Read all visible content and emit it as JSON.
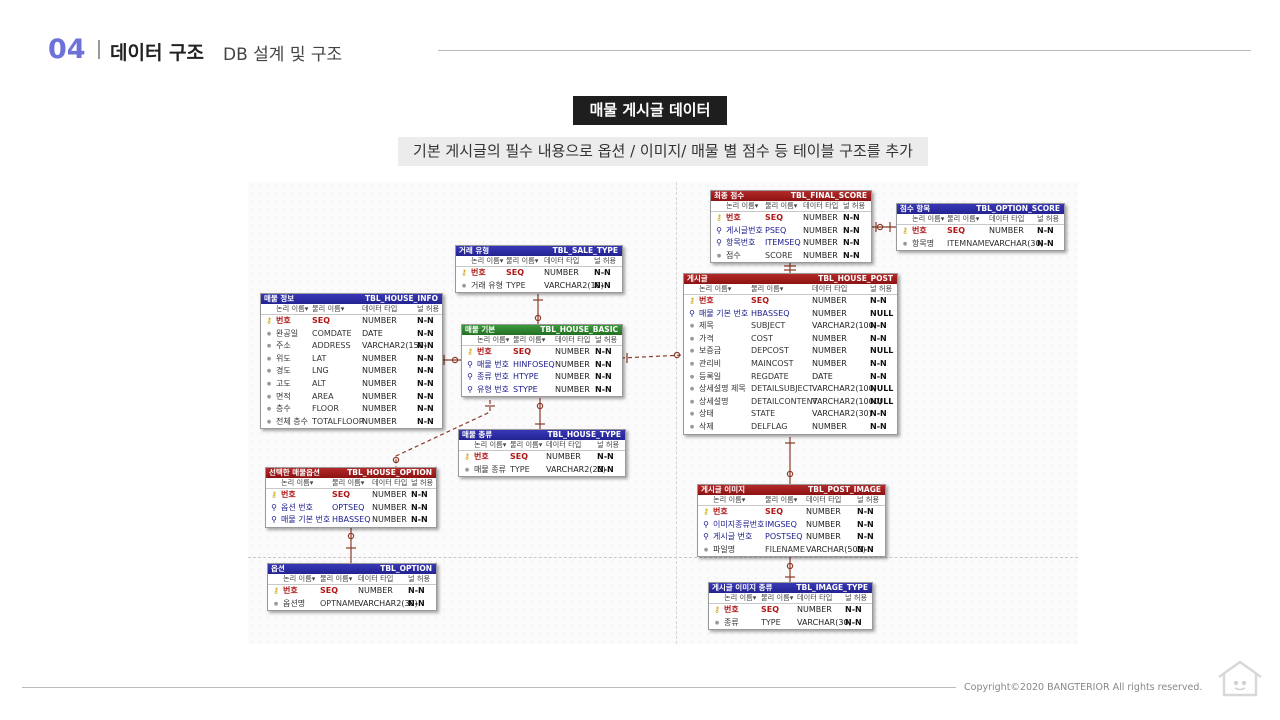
{
  "header": {
    "number": "04",
    "title": "데이터 구조",
    "subtitle": "DB 설계 및 구조"
  },
  "section": {
    "title": "매물 게시글 데이터",
    "description": "기본 게시글의 필수 내용으로 옵션 / 이미지/ 매물 별 점수 등 테이블 구조를 추가"
  },
  "footer": {
    "copyright": "Copyright©2020 BANGTERIOR All rights reserved."
  },
  "erd": {
    "column_headers": {
      "logical": "논리 이름",
      "physical": "물리 이름",
      "type": "데이터 타입",
      "nullable": "널 허용"
    },
    "tables": [
      {
        "id": "final_score",
        "color": "red",
        "logical": "최종 점수",
        "physical": "TBL_FINAL_SCORE",
        "rows": [
          {
            "kind": "pk",
            "logical": "번호",
            "physical": "SEQ",
            "type": "NUMBER",
            "nullable": "N-N"
          },
          {
            "kind": "fk",
            "logical": "게시글번호",
            "physical": "PSEQ",
            "type": "NUMBER",
            "nullable": "N-N"
          },
          {
            "kind": "fk",
            "logical": "항목번호",
            "physical": "ITEMSEQ",
            "type": "NUMBER",
            "nullable": "N-N"
          },
          {
            "kind": "attr",
            "logical": "점수",
            "physical": "SCORE",
            "type": "NUMBER",
            "nullable": "N-N"
          }
        ]
      },
      {
        "id": "option_score",
        "color": "blue",
        "logical": "점수 항목",
        "physical": "TBL_OPTION_SCORE",
        "rows": [
          {
            "kind": "pk",
            "logical": "번호",
            "physical": "SEQ",
            "type": "NUMBER",
            "nullable": "N-N"
          },
          {
            "kind": "attr",
            "logical": "항목명",
            "physical": "ITEMNAME",
            "type": "VARCHAR(30)",
            "nullable": "N-N"
          }
        ]
      },
      {
        "id": "sale_type",
        "color": "blue",
        "logical": "거래 유형",
        "physical": "TBL_SALE_TYPE",
        "rows": [
          {
            "kind": "pk",
            "logical": "번호",
            "physical": "SEQ",
            "type": "NUMBER",
            "nullable": "N-N"
          },
          {
            "kind": "attr",
            "logical": "거래 유형",
            "physical": "TYPE",
            "type": "VARCHAR2(10)",
            "nullable": "N-N"
          }
        ]
      },
      {
        "id": "house_post",
        "color": "red",
        "logical": "게시글",
        "physical": "TBL_HOUSE_POST",
        "rows": [
          {
            "kind": "pk",
            "logical": "번호",
            "physical": "SEQ",
            "type": "NUMBER",
            "nullable": "N-N"
          },
          {
            "kind": "fk",
            "logical": "매물 기본 번호",
            "physical": "HBASSEQ",
            "type": "NUMBER",
            "nullable": "NULL"
          },
          {
            "kind": "attr",
            "logical": "제목",
            "physical": "SUBJECT",
            "type": "VARCHAR2(100)",
            "nullable": "N-N"
          },
          {
            "kind": "attr",
            "logical": "가격",
            "physical": "COST",
            "type": "NUMBER",
            "nullable": "N-N"
          },
          {
            "kind": "attr",
            "logical": "보증금",
            "physical": "DEPCOST",
            "type": "NUMBER",
            "nullable": "NULL"
          },
          {
            "kind": "attr",
            "logical": "관리비",
            "physical": "MAINCOST",
            "type": "NUMBER",
            "nullable": "N-N"
          },
          {
            "kind": "attr",
            "logical": "등록일",
            "physical": "REGDATE",
            "type": "DATE",
            "nullable": "N-N"
          },
          {
            "kind": "attr",
            "logical": "상세설명 제목",
            "physical": "DETAILSUBJECT",
            "type": "VARCHAR2(100)",
            "nullable": "NULL"
          },
          {
            "kind": "attr",
            "logical": "상세설명",
            "physical": "DETAILCONTENT",
            "type": "VARCHAR2(1000)",
            "nullable": "NULL"
          },
          {
            "kind": "attr",
            "logical": "상태",
            "physical": "STATE",
            "type": "VARCHAR2(30)",
            "nullable": "N-N"
          },
          {
            "kind": "attr",
            "logical": "삭제",
            "physical": "DELFLAG",
            "type": "NUMBER",
            "nullable": "N-N"
          }
        ]
      },
      {
        "id": "house_info",
        "color": "blue",
        "logical": "매물 정보",
        "physical": "TBL_HOUSE_INFO",
        "rows": [
          {
            "kind": "pk",
            "logical": "번호",
            "physical": "SEQ",
            "type": "NUMBER",
            "nullable": "N-N"
          },
          {
            "kind": "attr",
            "logical": "완공일",
            "physical": "COMDATE",
            "type": "DATE",
            "nullable": "N-N"
          },
          {
            "kind": "attr",
            "logical": "주소",
            "physical": "ADDRESS",
            "type": "VARCHAR2(150)",
            "nullable": "N-N"
          },
          {
            "kind": "attr",
            "logical": "위도",
            "physical": "LAT",
            "type": "NUMBER",
            "nullable": "N-N"
          },
          {
            "kind": "attr",
            "logical": "경도",
            "physical": "LNG",
            "type": "NUMBER",
            "nullable": "N-N"
          },
          {
            "kind": "attr",
            "logical": "고도",
            "physical": "ALT",
            "type": "NUMBER",
            "nullable": "N-N"
          },
          {
            "kind": "attr",
            "logical": "면적",
            "physical": "AREA",
            "type": "NUMBER",
            "nullable": "N-N"
          },
          {
            "kind": "attr",
            "logical": "층수",
            "physical": "FLOOR",
            "type": "NUMBER",
            "nullable": "N-N"
          },
          {
            "kind": "attr",
            "logical": "전체 층수",
            "physical": "TOTALFLOOR",
            "type": "NUMBER",
            "nullable": "N-N"
          }
        ]
      },
      {
        "id": "house_basic",
        "color": "green",
        "logical": "매물 기본",
        "physical": "TBL_HOUSE_BASIC",
        "rows": [
          {
            "kind": "pk",
            "logical": "번호",
            "physical": "SEQ",
            "type": "NUMBER",
            "nullable": "N-N"
          },
          {
            "kind": "fk",
            "logical": "매물 번호",
            "physical": "HINFOSEQ",
            "type": "NUMBER",
            "nullable": "N-N"
          },
          {
            "kind": "fk",
            "logical": "종류 번호",
            "physical": "HTYPE",
            "type": "NUMBER",
            "nullable": "N-N"
          },
          {
            "kind": "fk",
            "logical": "유형 번호",
            "physical": "STYPE",
            "type": "NUMBER",
            "nullable": "N-N"
          }
        ]
      },
      {
        "id": "house_type",
        "color": "blue",
        "logical": "매물 종류",
        "physical": "TBL_HOUSE_TYPE",
        "rows": [
          {
            "kind": "pk",
            "logical": "번호",
            "physical": "SEQ",
            "type": "NUMBER",
            "nullable": "N-N"
          },
          {
            "kind": "attr",
            "logical": "매물 종류",
            "physical": "TYPE",
            "type": "VARCHAR2(20)",
            "nullable": "N-N"
          }
        ]
      },
      {
        "id": "house_option",
        "color": "red",
        "logical": "선택한 매물옵션",
        "physical": "TBL_HOUSE_OPTION",
        "rows": [
          {
            "kind": "pk",
            "logical": "번호",
            "physical": "SEQ",
            "type": "NUMBER",
            "nullable": "N-N"
          },
          {
            "kind": "fk",
            "logical": "옵션 번호",
            "physical": "OPTSEQ",
            "type": "NUMBER",
            "nullable": "N-N"
          },
          {
            "kind": "fk",
            "logical": "매물 기본 번호",
            "physical": "HBASSEQ",
            "type": "NUMBER",
            "nullable": "N-N"
          }
        ]
      },
      {
        "id": "post_image",
        "color": "red",
        "logical": "게시글 이미지",
        "physical": "TBL_POST_IMAGE",
        "rows": [
          {
            "kind": "pk",
            "logical": "번호",
            "physical": "SEQ",
            "type": "NUMBER",
            "nullable": "N-N"
          },
          {
            "kind": "fk",
            "logical": "이미지종류번호",
            "physical": "IMGSEQ",
            "type": "NUMBER",
            "nullable": "N-N"
          },
          {
            "kind": "fk",
            "logical": "게시글 번호",
            "physical": "POSTSEQ",
            "type": "NUMBER",
            "nullable": "N-N"
          },
          {
            "kind": "attr",
            "logical": "파일명",
            "physical": "FILENAME",
            "type": "VARCHAR(500)",
            "nullable": "N-N"
          }
        ]
      },
      {
        "id": "option",
        "color": "blue",
        "logical": "옵션",
        "physical": "TBL_OPTION",
        "rows": [
          {
            "kind": "pk",
            "logical": "번호",
            "physical": "SEQ",
            "type": "NUMBER",
            "nullable": "N-N"
          },
          {
            "kind": "attr",
            "logical": "옵션명",
            "physical": "OPTNAME",
            "type": "VARCHAR2(30)",
            "nullable": "N-N"
          }
        ]
      },
      {
        "id": "image_type",
        "color": "blue",
        "logical": "게시글 이미지 종류",
        "physical": "TBL_IMAGE_TYPE",
        "rows": [
          {
            "kind": "pk",
            "logical": "번호",
            "physical": "SEQ",
            "type": "NUMBER",
            "nullable": "N-N"
          },
          {
            "kind": "attr",
            "logical": "종류",
            "physical": "TYPE",
            "type": "VARCHAR(30)",
            "nullable": "N-N"
          }
        ]
      }
    ],
    "relationships": [
      {
        "from": "house_post",
        "to": "final_score",
        "style": "solid"
      },
      {
        "from": "option_score",
        "to": "final_score",
        "style": "solid"
      },
      {
        "from": "sale_type",
        "to": "house_basic",
        "style": "solid"
      },
      {
        "from": "house_info",
        "to": "house_basic",
        "style": "solid"
      },
      {
        "from": "house_type",
        "to": "house_basic",
        "style": "solid"
      },
      {
        "from": "house_basic",
        "to": "house_post",
        "style": "dashed"
      },
      {
        "from": "house_basic",
        "to": "house_option",
        "style": "dashed"
      },
      {
        "from": "option",
        "to": "house_option",
        "style": "solid"
      },
      {
        "from": "house_post",
        "to": "post_image",
        "style": "solid"
      },
      {
        "from": "image_type",
        "to": "post_image",
        "style": "solid"
      }
    ]
  }
}
